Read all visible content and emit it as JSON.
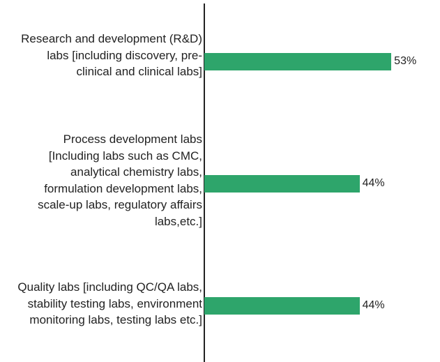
{
  "chart_data": {
    "type": "bar",
    "orientation": "horizontal",
    "categories": [
      "Research and development (R&D) labs [including discovery, pre-clinical and clinical labs]",
      "Process development labs [Including labs such as CMC, analytical chemistry labs, formulation development labs, scale-up labs, regulatory affairs labs,etc.]",
      "Quality labs [including QC/QA labs, stability testing labs, environment monitoring labs, testing labs etc.]"
    ],
    "values": [
      53,
      44,
      44
    ],
    "value_labels": [
      "53%",
      "44%",
      "44%"
    ],
    "color": "#2ea56b"
  }
}
